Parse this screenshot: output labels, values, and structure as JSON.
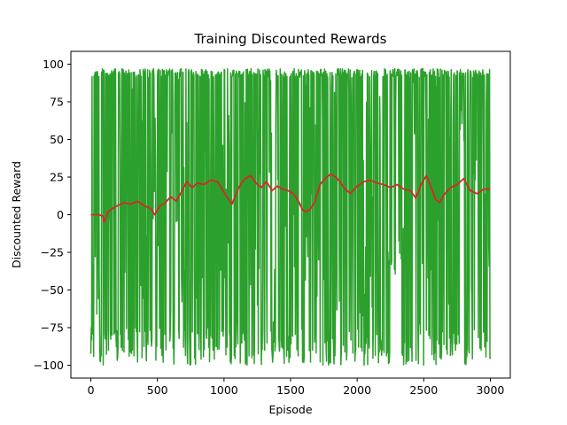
{
  "chart_data": {
    "type": "line",
    "title": "Training Discounted Rewards",
    "xlabel": "Episode",
    "ylabel": "Discounted Reward",
    "xlim": [
      -150,
      3150
    ],
    "ylim": [
      -108.5,
      108.5
    ],
    "xticks": [
      0,
      500,
      1000,
      1500,
      2000,
      2500,
      3000
    ],
    "yticks": [
      -100,
      -75,
      -50,
      -25,
      0,
      25,
      50,
      75,
      100
    ],
    "grid": false,
    "legend": "none",
    "series": [
      {
        "role": "raw_rewards",
        "color": "#2ca02c",
        "episodes": [
          0,
          3000
        ],
        "upper_envelope_approx": 97,
        "lower_envelope_approx": -100,
        "note": "Per-episode rewards oscillating between about -100 and 97; dense band"
      },
      {
        "role": "moving_average",
        "color": "#d62728",
        "x": [
          0,
          60,
          90,
          100,
          130,
          160,
          200,
          250,
          300,
          350,
          400,
          450,
          480,
          520,
          560,
          600,
          640,
          680,
          720,
          760,
          800,
          850,
          900,
          950,
          980,
          1020,
          1060,
          1100,
          1130,
          1160,
          1200,
          1240,
          1280,
          1320,
          1360,
          1400,
          1440,
          1480,
          1520,
          1560,
          1590,
          1620,
          1650,
          1680,
          1720,
          1760,
          1800,
          1840,
          1870,
          1900,
          1950,
          2000,
          2050,
          2100,
          2150,
          2200,
          2250,
          2300,
          2350,
          2400,
          2440,
          2480,
          2520,
          2560,
          2590,
          2620,
          2650,
          2700,
          2750,
          2800,
          2850,
          2900,
          2950,
          3000
        ],
        "y": [
          0,
          0,
          -1,
          -5,
          2,
          4,
          6,
          8,
          7,
          9,
          6,
          4,
          0,
          6,
          8,
          12,
          9,
          15,
          22,
          18,
          21,
          20,
          23,
          22,
          18,
          12,
          7,
          16,
          21,
          24,
          26,
          21,
          18,
          22,
          16,
          19,
          17,
          16,
          14,
          9,
          3,
          2,
          4,
          8,
          20,
          24,
          27,
          25,
          22,
          18,
          14,
          19,
          22,
          23,
          21,
          20,
          18,
          20,
          17,
          16,
          11,
          20,
          26,
          17,
          10,
          8,
          13,
          18,
          20,
          24,
          16,
          14,
          17,
          17
        ]
      }
    ]
  }
}
